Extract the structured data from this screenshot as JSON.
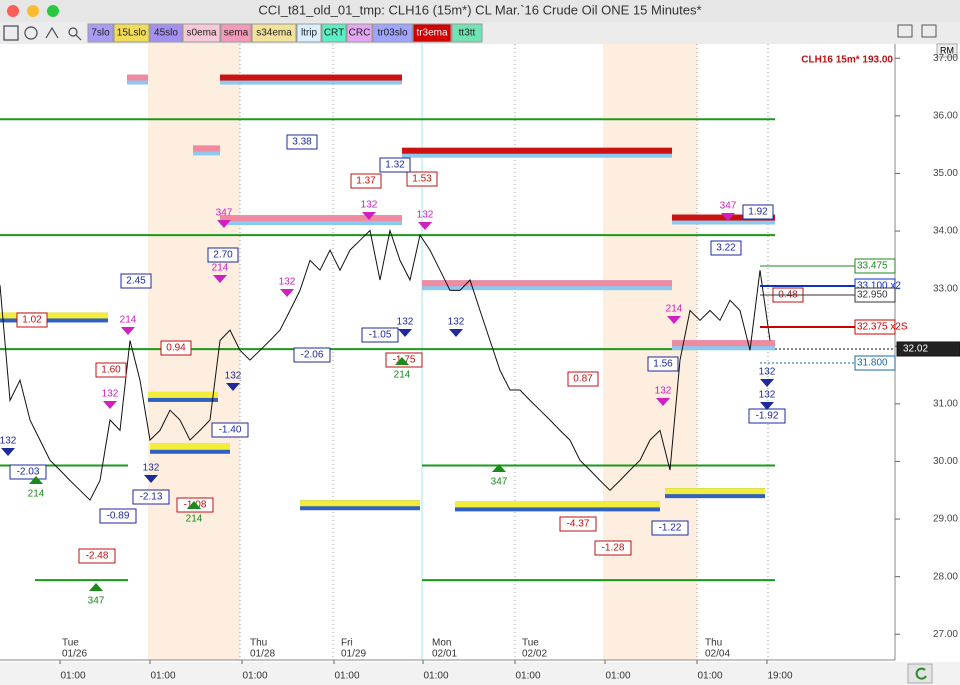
{
  "window": {
    "title": "CCI_t81_old_01_tmp: CLH16 (15m*) CL Mar.`16 Crude Oil ONE 15 Minutes*",
    "corner_button": "RM"
  },
  "toolbar": [
    {
      "label": "7slo",
      "color": "#a99cf5"
    },
    {
      "label": "15Lslo",
      "color": "#f2dc55"
    },
    {
      "label": "45slo",
      "color": "#a58ff0"
    },
    {
      "label": "s0ema",
      "color": "#f7c8d8"
    },
    {
      "label": "sema",
      "color": "#f29ab6"
    },
    {
      "label": "s34ema",
      "color": "#f3e29c"
    },
    {
      "label": "ltrip",
      "color": "#d9efff"
    },
    {
      "label": "CRT",
      "color": "#5bf0c4"
    },
    {
      "label": "CRC",
      "color": "#e3a6f2"
    },
    {
      "label": "tr03slo",
      "color": "#9ea4ff"
    },
    {
      "label": "tr3ema",
      "color": "#d30000"
    },
    {
      "label": "tt3tt",
      "color": "#72e3b4"
    }
  ],
  "chart_data": {
    "type": "line",
    "symbol_label": "CLH16 15m* 193.00",
    "ylim": [
      26.64,
      37.23
    ],
    "yticks": [
      {
        "value": 27,
        "label": "27.00"
      },
      {
        "value": 28,
        "label": "28.00"
      },
      {
        "value": 29,
        "label": "29.00"
      },
      {
        "value": 30,
        "label": "30.00"
      },
      {
        "value": 31,
        "label": "31.00"
      },
      {
        "value": 32,
        "label": "32.00"
      },
      {
        "value": 33,
        "label": "33.00"
      },
      {
        "value": 34,
        "label": "34.00"
      },
      {
        "value": 35,
        "label": "35.00"
      },
      {
        "value": 36,
        "label": "36.00"
      },
      {
        "value": 37,
        "label": "37.00"
      }
    ],
    "days": [
      [
        "Tue",
        "01/26"
      ],
      [
        "Thu",
        "01/28"
      ],
      [
        "Fri",
        "01/29"
      ],
      [
        "Mon",
        "02/01"
      ],
      [
        "Tue",
        "02/02"
      ],
      [
        "Thu",
        "02/04"
      ]
    ],
    "hours": [
      "01:00",
      "01:00",
      "01:00",
      "01:00",
      "01:00",
      "01:00",
      "01:00",
      "01:00",
      "19:00"
    ],
    "series": [
      {
        "name": "CLH16",
        "color": "#111111",
        "values": [
          33.06,
          31.06,
          31.41,
          30.72,
          30.37,
          30.02,
          29.85,
          29.67,
          29.5,
          29.33,
          29.67,
          30.72,
          30.54,
          32.1,
          31.41,
          30.37,
          30.54,
          30.89,
          30.72,
          30.37,
          30.54,
          30.72,
          32.1,
          32.28,
          31.93,
          31.76,
          31.93,
          32.1,
          32.28,
          32.62,
          32.97,
          33.49,
          33.32,
          33.67,
          33.32,
          33.67,
          33.84,
          34.01,
          33.15,
          34.01,
          33.49,
          33.15,
          33.93,
          33.67,
          33.32,
          32.97,
          32.97,
          33.15,
          32.62,
          32.1,
          31.58,
          31.24,
          31.24,
          31.06,
          30.89,
          30.72,
          30.54,
          30.37,
          30.02,
          29.85,
          29.67,
          29.5,
          29.67,
          29.85,
          30.02,
          30.37,
          30.54,
          29.85,
          31.76,
          32.62,
          32.45,
          32.62,
          32.45,
          32.8,
          32.62,
          31.93,
          33.32,
          32.1
        ]
      }
    ],
    "levels": {
      "color": "#1a9a1a",
      "values": [
        35.94,
        33.93,
        31.95,
        29.93,
        27.94
      ]
    },
    "bands": [
      {
        "value": 36.63,
        "color": "#f08aa0"
      },
      {
        "value": 36.63,
        "color": "#cc1111"
      },
      {
        "value": 35.4,
        "color": "#f08aa0"
      },
      {
        "value": 35.36,
        "color": "#cc1111"
      },
      {
        "value": 34.19,
        "color": "#f08aa0"
      },
      {
        "value": 34.2,
        "color": "#cc1111"
      },
      {
        "value": 33.06,
        "color": "#f08aa0"
      },
      {
        "value": 32.02,
        "color": "#f08aa0"
      },
      {
        "value": 32.5,
        "color": "#f2ec3a"
      },
      {
        "value": 31.12,
        "color": "#f2ec3a"
      },
      {
        "value": 30.22,
        "color": "#f2ec3a"
      },
      {
        "value": 29.24,
        "color": "#f2ec3a"
      },
      {
        "value": 29.22,
        "color": "#f2ec3a"
      },
      {
        "value": 29.45,
        "color": "#f2ec3a"
      }
    ],
    "annotations": [
      {
        "text": "3.38",
        "color": "#1c2a9c"
      },
      {
        "text": "1.37",
        "color": "#c01010"
      },
      {
        "text": "1.53",
        "color": "#c01010"
      },
      {
        "text": "1.32",
        "color": "#1c2a9c"
      },
      {
        "text": "2.70",
        "color": "#1c2a9c"
      },
      {
        "text": "2.45",
        "color": "#1c2a9c"
      },
      {
        "text": "1.02",
        "color": "#c01010"
      },
      {
        "text": "0.94",
        "color": "#c01010"
      },
      {
        "text": "1.60",
        "color": "#c01010"
      },
      {
        "text": "-2.06",
        "color": "#1c2a9c"
      },
      {
        "text": "-1.05",
        "color": "#1c2a9c"
      },
      {
        "text": "-1.75",
        "color": "#c01010"
      },
      {
        "text": "0.87",
        "color": "#c01010"
      },
      {
        "text": "-1.40",
        "color": "#1c2a9c"
      },
      {
        "text": "-2.03",
        "color": "#1c2a9c"
      },
      {
        "text": "-2.13",
        "color": "#1c2a9c"
      },
      {
        "text": "-0.89",
        "color": "#1c2a9c"
      },
      {
        "text": "-1.08",
        "color": "#c01010"
      },
      {
        "text": "-2.48",
        "color": "#c01010"
      },
      {
        "text": "-4.37",
        "color": "#c01010"
      },
      {
        "text": "-1.28",
        "color": "#c01010"
      },
      {
        "text": "-1.22",
        "color": "#1c2a9c"
      },
      {
        "text": "1.56",
        "color": "#1c2a9c"
      },
      {
        "text": "3.22",
        "color": "#1c2a9c"
      },
      {
        "text": "1.92",
        "color": "#1c2a9c"
      },
      {
        "text": "-1.92",
        "color": "#1c2a9c"
      },
      {
        "text": "0.48",
        "color": "#c01010"
      }
    ],
    "markers": [
      {
        "text": "347",
        "color": "#d020c0"
      },
      {
        "text": "214",
        "color": "#d020c0"
      },
      {
        "text": "214",
        "color": "#d020c0"
      },
      {
        "text": "132",
        "color": "#d020c0"
      },
      {
        "text": "132",
        "color": "#d020c0"
      },
      {
        "text": "132",
        "color": "#d020c0"
      },
      {
        "text": "132",
        "color": "#d020c0"
      },
      {
        "text": "132",
        "color": "#1c2a9c"
      },
      {
        "text": "132",
        "color": "#1c2a9c"
      },
      {
        "text": "214",
        "color": "#1a8a1a"
      },
      {
        "text": "347",
        "color": "#1a8a1a"
      },
      {
        "text": "214",
        "color": "#1a8a1a"
      },
      {
        "text": "347",
        "color": "#1a8a1a"
      },
      {
        "text": "214",
        "color": "#1a8a1a"
      },
      {
        "text": "132",
        "color": "#1c2a9c"
      },
      {
        "text": "132",
        "color": "#1c2a9c"
      },
      {
        "text": "132",
        "color": "#1c2a9c"
      },
      {
        "text": "214",
        "color": "#d020c0"
      },
      {
        "text": "347",
        "color": "#d020c0"
      },
      {
        "text": "132",
        "color": "#1c2a9c"
      },
      {
        "text": "132",
        "color": "#1c2a9c"
      },
      {
        "text": "132",
        "color": "#d020c0"
      }
    ],
    "price_labels": [
      {
        "text": "33.475",
        "color": "#1a8a1a"
      },
      {
        "text": "33.100 x2",
        "color": "#1030c0"
      },
      {
        "text": "32.950",
        "color": "#333333"
      },
      {
        "text": "32.375 x2S",
        "color": "#d00000"
      },
      {
        "text": "32.02",
        "color": "#111111"
      },
      {
        "text": "31.800",
        "color": "#1a6aa0"
      }
    ]
  }
}
